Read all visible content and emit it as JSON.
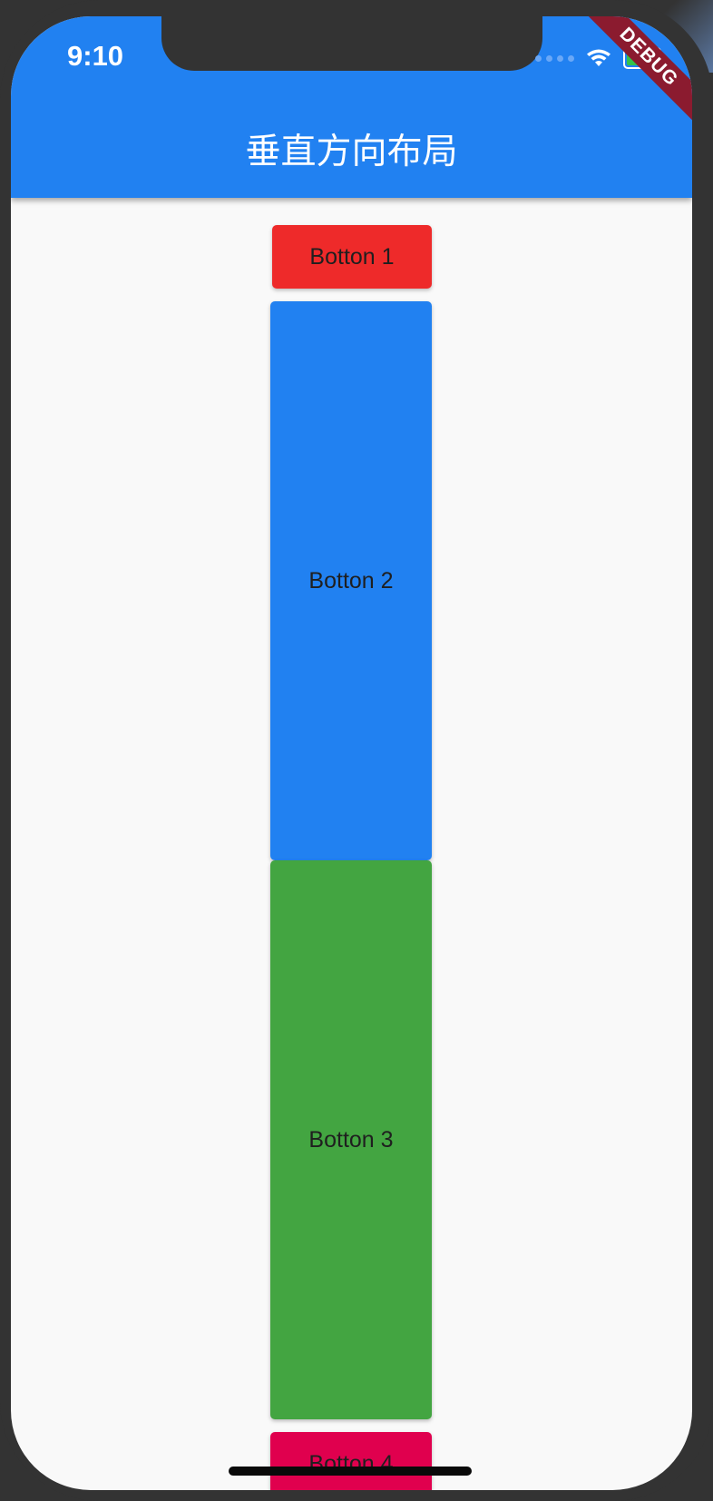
{
  "status_bar": {
    "time": "9:10",
    "wifi_icon": "wifi-icon",
    "battery_icon": "battery-icon"
  },
  "debug_banner": "DEBUG",
  "app_bar": {
    "title": "垂直方向布局",
    "background": "#2181f1"
  },
  "buttons": [
    {
      "label": "Botton 1",
      "color": "#ee2a2a"
    },
    {
      "label": "Botton 2",
      "color": "#2181f1"
    },
    {
      "label": "Botton 3",
      "color": "#43a541"
    },
    {
      "label": "Botton 4",
      "color": "#e0004e"
    }
  ]
}
